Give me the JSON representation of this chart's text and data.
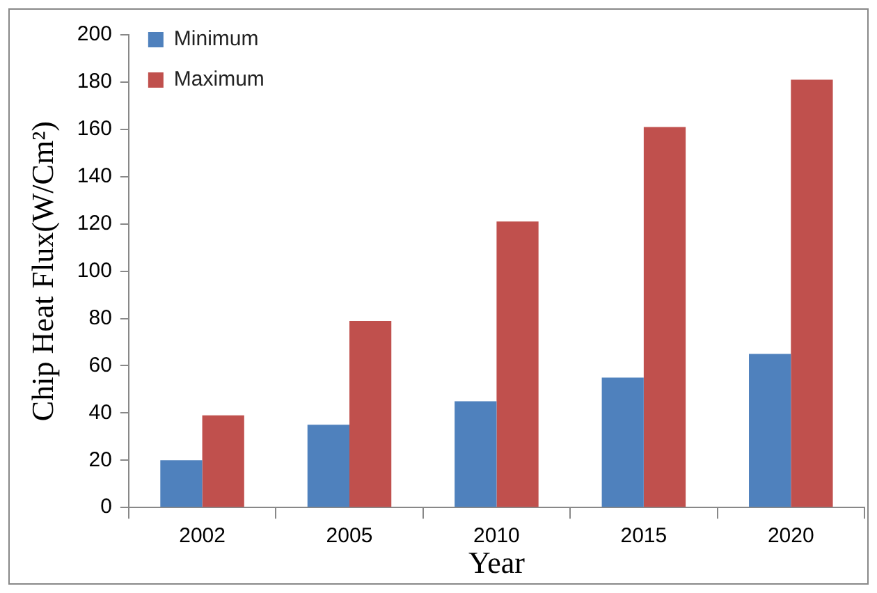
{
  "chart_data": {
    "type": "bar",
    "xlabel": "Year",
    "ylabel": "Chip Heat Flux(W/Cm²)",
    "categories": [
      "2002",
      "2005",
      "2010",
      "2015",
      "2020"
    ],
    "series": [
      {
        "name": "Minimum",
        "color": "#4f81bd",
        "values": [
          20,
          35,
          45,
          55,
          65
        ]
      },
      {
        "name": "Maximum",
        "color": "#c0504d",
        "values": [
          39,
          79,
          121,
          161,
          181
        ]
      }
    ],
    "ylim": [
      0,
      200
    ],
    "yticks": [
      0,
      20,
      40,
      60,
      80,
      100,
      120,
      140,
      160,
      180,
      200
    ],
    "grid": false,
    "legend": "top left"
  }
}
